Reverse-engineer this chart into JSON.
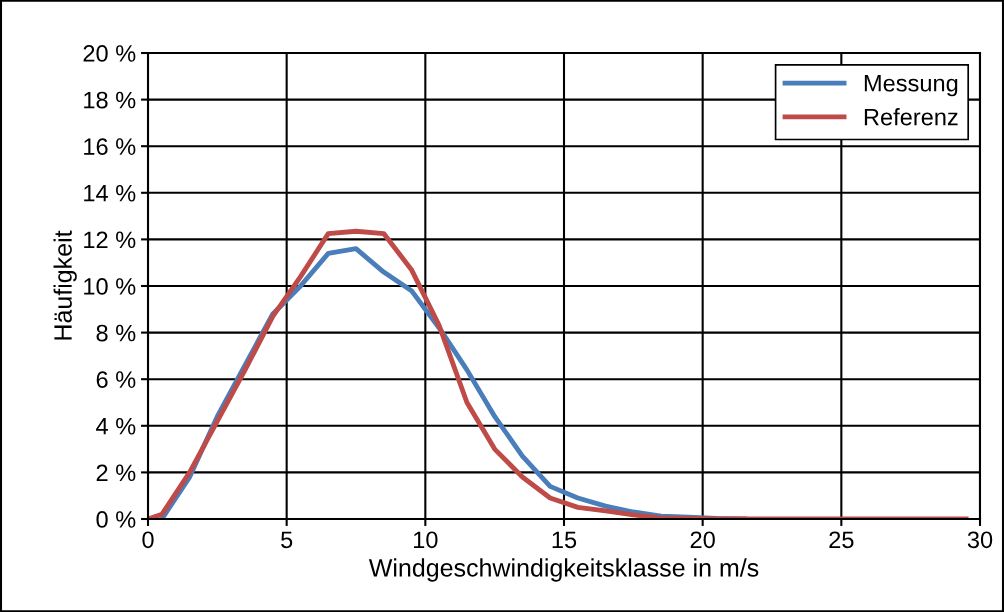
{
  "chart_data": {
    "type": "line",
    "xlabel": "Windgeschwindigkeitsklasse in m/s",
    "ylabel": "Häufigkeit",
    "xlim": [
      0,
      30
    ],
    "xticks": [
      0,
      5,
      10,
      15,
      20,
      25,
      30
    ],
    "ylim": [
      0,
      20
    ],
    "yticks": [
      {
        "value": 0,
        "label": "0 %"
      },
      {
        "value": 2,
        "label": "2 %"
      },
      {
        "value": 4,
        "label": "4 %"
      },
      {
        "value": 6,
        "label": "6 %"
      },
      {
        "value": 8,
        "label": "8 %"
      },
      {
        "value": 10,
        "label": "10 %"
      },
      {
        "value": 12,
        "label": "12 %"
      },
      {
        "value": 14,
        "label": "14 %"
      },
      {
        "value": 16,
        "label": "16 %"
      },
      {
        "value": 18,
        "label": "18 %"
      },
      {
        "value": 20,
        "label": "20 %"
      }
    ],
    "grid": true,
    "legend": "top right",
    "marker": "none",
    "line_style": "solid",
    "series": [
      {
        "name": "Messung",
        "color": "#4a7ebb",
        "x": [
          0.5,
          1.5,
          2.5,
          3.5,
          4.5,
          5.5,
          6.5,
          7.5,
          8.5,
          9.5,
          10.5,
          11.5,
          12.5,
          13.5,
          14.5,
          15.5,
          16.5,
          17.5,
          18.5,
          19.5,
          20.5,
          21.5
        ],
        "values": [
          0,
          1.8,
          4.4,
          6.6,
          8.8,
          10.0,
          11.4,
          11.6,
          10.6,
          9.8,
          8.2,
          6.4,
          4.4,
          2.7,
          1.4,
          0.9,
          0.55,
          0.3,
          0.12,
          0.08,
          0.02,
          0
        ]
      },
      {
        "name": "Referenz",
        "color": "#be4b48",
        "x": [
          0,
          0.5,
          1.5,
          2.5,
          3.5,
          4.5,
          5.5,
          6.5,
          7.5,
          8.5,
          9.5,
          10.5,
          11.5,
          12.5,
          13.5,
          14.5,
          15.5,
          16.5,
          17.5,
          18.5,
          19.5,
          20.5,
          21.5,
          22.5,
          23.5,
          24.5,
          25.5,
          26.5,
          27.5,
          28.5,
          29.5
        ],
        "values": [
          0,
          0.2,
          2.0,
          4.2,
          6.4,
          8.7,
          10.4,
          12.25,
          12.35,
          12.25,
          10.7,
          8.3,
          5.0,
          3.0,
          1.8,
          0.9,
          0.5,
          0.35,
          0.18,
          0.05,
          0.02,
          0,
          0,
          0,
          0,
          0,
          0,
          0,
          0,
          0,
          0
        ]
      }
    ]
  }
}
